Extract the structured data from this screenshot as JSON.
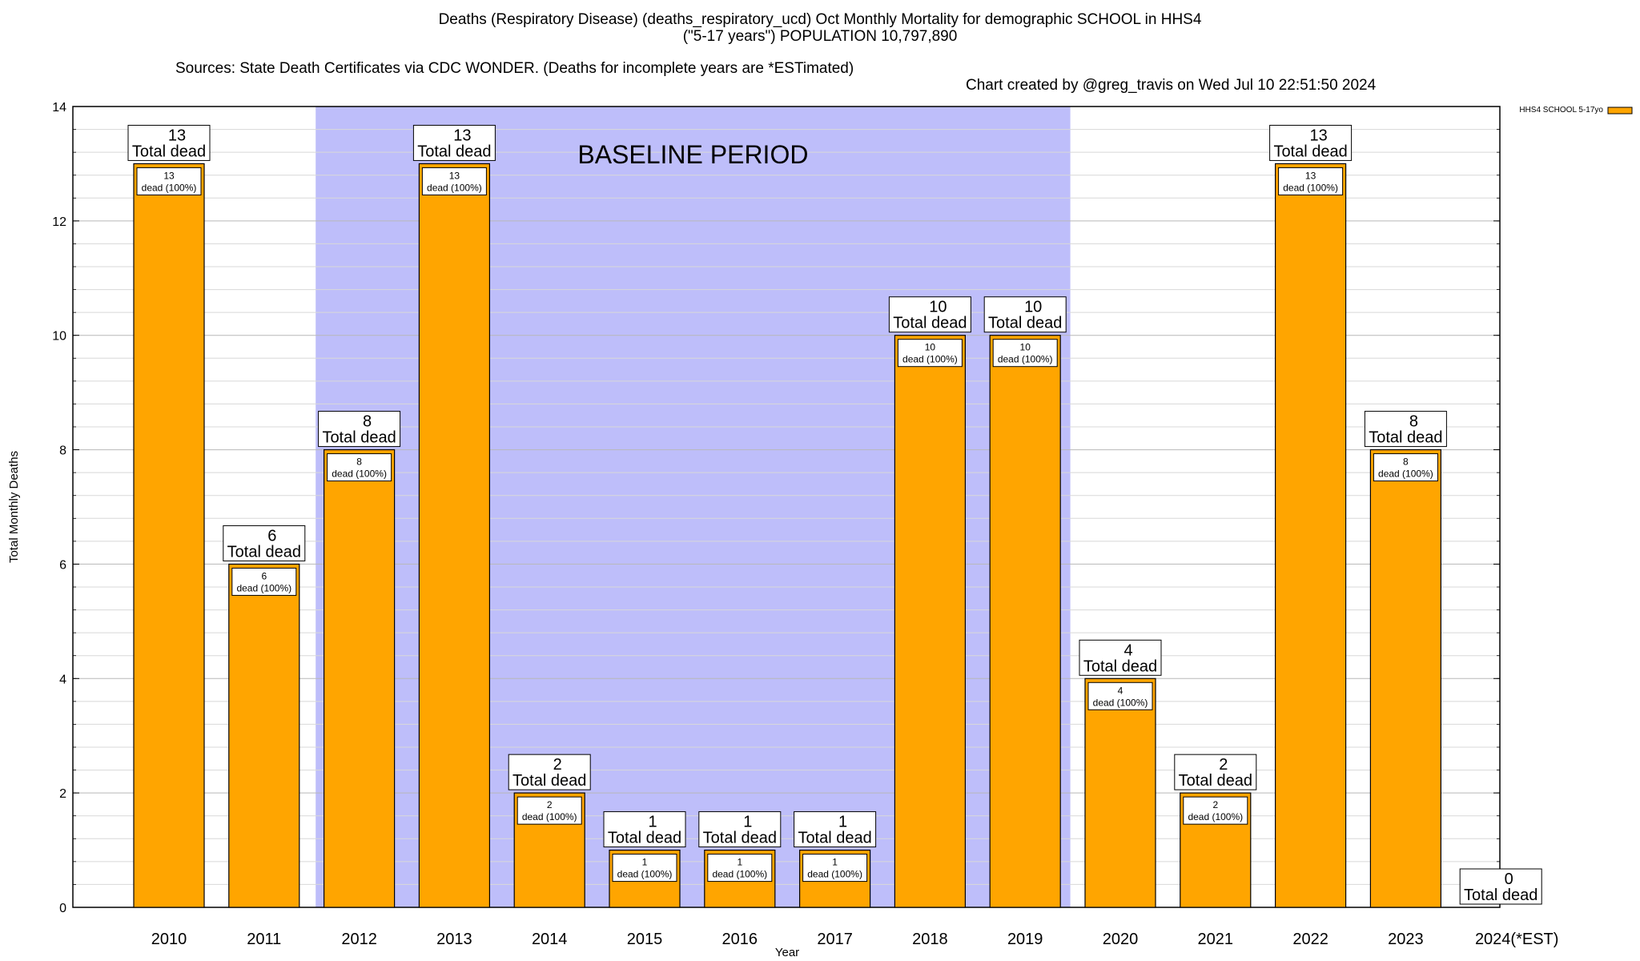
{
  "title": {
    "line1": "Deaths (Respiratory Disease) (deaths_respiratory_ucd) Oct Monthly Mortality for demographic SCHOOL in HHS4",
    "line2": "(\"5-17 years\") POPULATION 10,797,890",
    "sources": "Sources: State Death Certificates via CDC WONDER. (Deaths for incomplete years are *ESTimated)",
    "credit": "Chart created by @greg_travis on Wed Jul 10 22:51:50 2024"
  },
  "chart_data": {
    "type": "bar",
    "title": "Deaths (Respiratory Disease) (deaths_respiratory_ucd) Oct Monthly Mortality for demographic SCHOOL in HHS4",
    "xlabel": "Year",
    "ylabel": "Total Monthly Deaths",
    "ylim": [
      0,
      14
    ],
    "yticks": [
      0,
      2,
      4,
      6,
      8,
      10,
      12,
      14
    ],
    "grid": true,
    "legend_position": "top-right",
    "categories": [
      "2010",
      "2011",
      "2012",
      "2013",
      "2014",
      "2015",
      "2016",
      "2017",
      "2018",
      "2019",
      "2020",
      "2021",
      "2022",
      "2023",
      "2024(*EST)"
    ],
    "series": [
      {
        "name": "HHS4 SCHOOL 5-17yo",
        "color": "#FFA500",
        "values": [
          13,
          6,
          8,
          13,
          2,
          1,
          1,
          1,
          10,
          10,
          4,
          2,
          13,
          8,
          0
        ]
      }
    ],
    "total_label_suffix": "Total dead",
    "inner_label_suffix": "dead (100%)",
    "baseline": {
      "label": "BASELINE PERIOD",
      "start": "2012",
      "end": "2019",
      "color": "#BEBEFA"
    }
  }
}
